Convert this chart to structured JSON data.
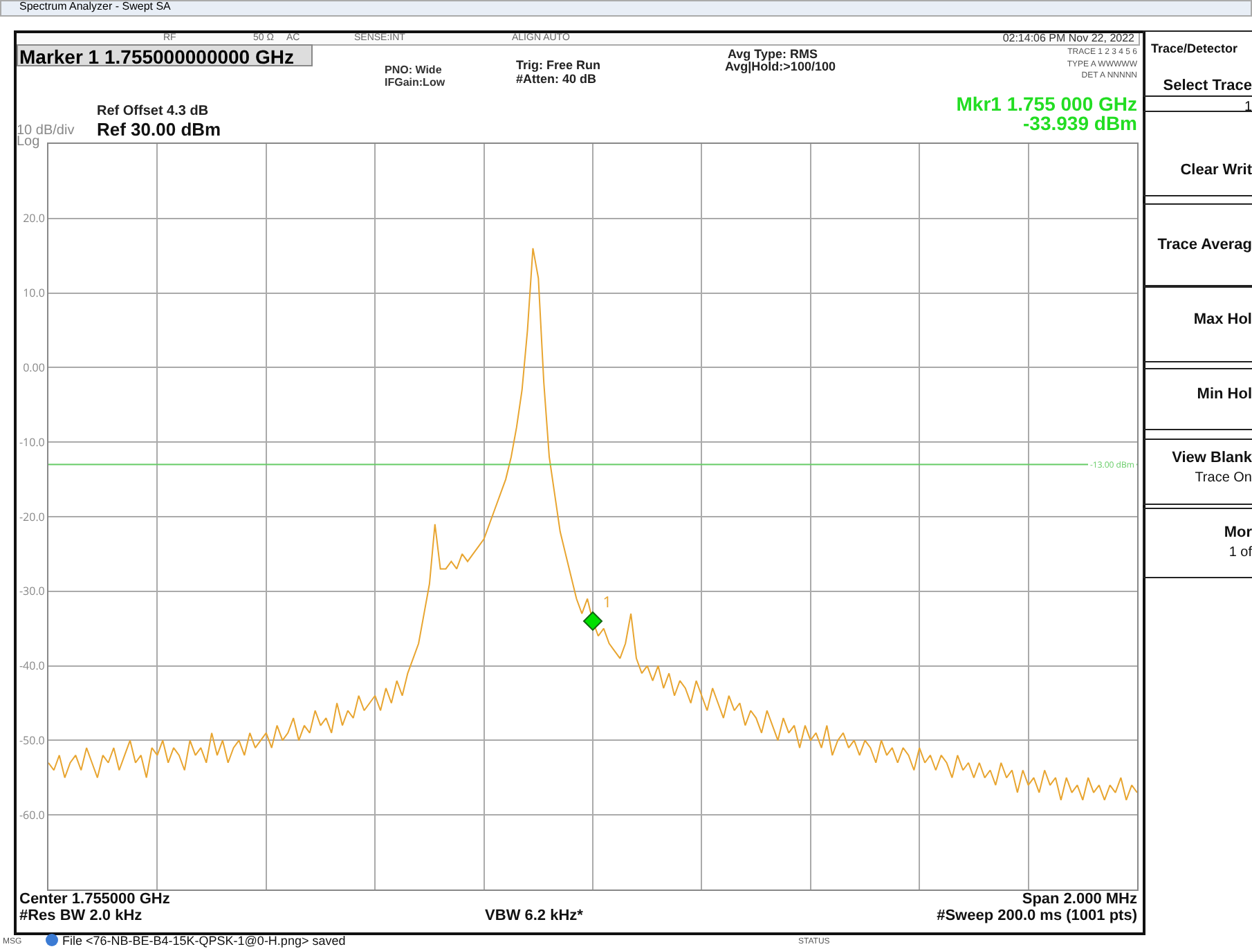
{
  "chart_data": {
    "type": "line",
    "title": "Spectrum Analyzer - Swept SA",
    "categories": [
      null,
      null,
      null,
      null,
      null,
      null,
      null,
      null,
      null,
      null,
      null,
      null,
      null,
      null,
      null,
      null,
      null,
      null,
      null,
      null,
      null,
      null,
      null,
      null,
      null,
      null,
      null,
      null,
      null,
      null,
      null,
      null,
      null,
      null,
      null,
      null,
      null,
      null,
      null,
      null,
      null,
      null,
      null,
      null,
      null,
      null,
      null,
      null,
      null,
      null,
      null,
      null,
      null,
      null,
      null,
      null,
      null,
      null,
      null,
      null,
      null,
      null,
      null,
      null,
      null,
      null,
      null,
      null,
      null,
      null,
      null,
      null,
      null,
      null,
      null,
      null,
      null,
      null,
      null,
      null,
      null,
      null,
      null,
      null,
      null,
      null,
      null,
      null,
      null,
      null,
      null,
      null,
      null,
      null,
      null,
      null,
      null,
      null,
      null,
      null,
      null,
      null,
      null,
      null,
      null,
      null,
      null,
      null,
      null,
      null,
      null,
      null,
      null,
      null,
      null,
      null,
      null,
      null,
      null,
      null,
      null,
      null,
      null,
      null,
      null,
      null,
      null,
      null,
      null,
      null,
      null,
      null,
      null,
      null,
      null,
      null,
      null,
      null,
      null,
      null,
      null,
      null,
      null,
      null,
      null,
      null,
      null,
      null,
      null,
      null,
      null,
      null,
      null,
      null,
      null,
      null,
      null,
      null,
      null,
      null,
      null,
      null,
      null,
      null,
      null,
      null,
      null,
      null,
      null,
      null,
      null,
      null,
      null,
      null,
      null,
      null,
      null,
      null,
      null,
      null,
      null,
      null,
      null,
      null,
      null,
      null,
      null,
      null,
      null,
      null,
      null,
      null,
      null,
      null,
      null,
      null,
      null,
      null,
      null,
      null,
      null
    ],
    "series": [
      {
        "type": "line",
        "color": "#e8a530",
        "values": [
          -53,
          -54,
          -52,
          -55,
          -53,
          -52,
          -54,
          -51,
          -53,
          -55,
          -52,
          -53,
          -51,
          -54,
          -52,
          -50,
          -53,
          -52,
          -55,
          -51,
          -52,
          -50,
          -53,
          -51,
          -52,
          -54,
          -50,
          -52,
          -51,
          -53,
          -49,
          -52,
          -50,
          -53,
          -51,
          -50,
          -52,
          -49,
          -51,
          -50,
          -49,
          -51,
          -48,
          -50,
          -49,
          -47,
          -50,
          -48,
          -49,
          -46,
          -48,
          -47,
          -49,
          -45,
          -48,
          -46,
          -47,
          -44,
          -46,
          -45,
          -44,
          -46,
          -43,
          -45,
          -42,
          -44,
          -41,
          -39,
          -37,
          -33,
          -29,
          -21,
          -27,
          -27,
          -26,
          -27,
          -25,
          -26,
          -25,
          -24,
          -23,
          -21,
          -19,
          -17,
          -15,
          -12,
          -8,
          -3,
          5,
          16,
          12,
          -2,
          -12,
          -17,
          -22,
          -25,
          -28,
          -31,
          -33,
          -31,
          -34,
          -36,
          -35,
          -37,
          -38,
          -39,
          -37,
          -33,
          -39,
          -41,
          -40,
          -42,
          -40,
          -43,
          -41,
          -44,
          -42,
          -43,
          -45,
          -42,
          -44,
          -46,
          -43,
          -45,
          -47,
          -44,
          -46,
          -45,
          -48,
          -46,
          -47,
          -49,
          -46,
          -48,
          -50,
          -47,
          -49,
          -48,
          -51,
          -48,
          -50,
          -49,
          -51,
          -48,
          -52,
          -50,
          -49,
          -51,
          -50,
          -52,
          -50,
          -51,
          -53,
          -50,
          -52,
          -51,
          -53,
          -51,
          -52,
          -54,
          -51,
          -53,
          -52,
          -54,
          -52,
          -53,
          -55,
          -52,
          -54,
          -53,
          -55,
          -53,
          -55,
          -54,
          -56,
          -53,
          -55,
          -54,
          -57,
          -54,
          -56,
          -55,
          -57,
          -54,
          -56,
          -55,
          -58,
          -55,
          -57,
          -56,
          -58,
          -55,
          -57,
          -56,
          -58,
          -56,
          -57,
          -55,
          -58,
          -56,
          -57
        ]
      },
      {
        "type": "scatter",
        "name": "1",
        "color": "#00e000",
        "marker": "diamond",
        "values": [
          null,
          null,
          null,
          null,
          null,
          null,
          null,
          null,
          null,
          null,
          null,
          null,
          null,
          null,
          null,
          null,
          null,
          null,
          null,
          null,
          null,
          null,
          null,
          null,
          null,
          null,
          null,
          null,
          null,
          null,
          null,
          null,
          null,
          null,
          null,
          null,
          null,
          null,
          null,
          null,
          null,
          null,
          null,
          null,
          null,
          null,
          null,
          null,
          null,
          null,
          null,
          null,
          null,
          null,
          null,
          null,
          null,
          null,
          null,
          null,
          null,
          null,
          null,
          null,
          null,
          null,
          null,
          null,
          null,
          null,
          null,
          null,
          null,
          null,
          null,
          null,
          null,
          null,
          null,
          null,
          null,
          null,
          null,
          null,
          null,
          null,
          null,
          null,
          null,
          null,
          null,
          null,
          null,
          null,
          null,
          null,
          null,
          null,
          null,
          null,
          -34,
          null,
          null,
          null,
          null,
          null,
          null,
          null,
          null,
          null,
          null,
          null,
          null,
          null,
          null,
          null,
          null,
          null,
          null,
          null,
          null,
          null,
          null,
          null,
          null,
          null,
          null,
          null,
          null,
          null,
          null,
          null,
          null,
          null,
          null,
          null,
          null,
          null,
          null,
          null,
          null,
          null,
          null,
          null,
          null,
          null,
          null,
          null,
          null,
          null,
          null,
          null,
          null,
          null,
          null,
          null,
          null,
          null,
          null,
          null,
          null,
          null,
          null,
          null,
          null,
          null,
          null,
          null,
          null,
          null,
          null,
          null,
          null,
          null,
          null,
          null,
          null,
          null,
          null,
          null,
          null,
          null,
          null,
          null,
          null,
          null,
          null,
          null,
          null,
          null,
          null,
          null,
          null,
          null,
          null,
          null,
          null,
          null,
          null,
          null,
          null
        ]
      }
    ],
    "ylim": [
      -70,
      30
    ],
    "yticks": [
      {
        "value": 20,
        "label": "20.0"
      },
      {
        "value": 10,
        "label": "10.0"
      },
      {
        "value": 0,
        "label": "0.00"
      },
      {
        "value": -10,
        "label": "-10.0"
      },
      {
        "value": -20,
        "label": "-20.0"
      },
      {
        "value": -30,
        "label": "-30.0"
      },
      {
        "value": -40,
        "label": "-40.0"
      },
      {
        "value": -50,
        "label": "-50.0"
      },
      {
        "value": -60,
        "label": "-60.0"
      }
    ],
    "grid": true,
    "tick_labels": "y",
    "legend": false,
    "line_style": "solid",
    "ref_lines": [
      {
        "axis": "y",
        "value": -13,
        "label": "-13.00 dBm",
        "color": "#66cc66"
      }
    ],
    "annotations": [
      "Marker 1 1.755000000000 GHz",
      "RF",
      "50 Ω",
      "AC",
      "SENSE:INT",
      "ALIGN AUTO",
      "02:14:06 PM Nov 22, 2022",
      "PNO: Wide",
      "IFGain:Low",
      "Trig: Free Run",
      "#Atten: 40 dB",
      "Avg Type: RMS",
      "Avg|Hold:>100/100",
      "TRACE 1 2 3 4 5 6",
      "TYPE A WWWWW",
      "DET A NNNNN",
      "Ref Offset 4.3 dB",
      "Ref 30.00 dBm",
      "10 dB/div",
      "Log",
      "Mkr1 1.755 000 GHz",
      "-33.939 dBm",
      "Center 1.755000 GHz",
      "#Res BW 2.0 kHz",
      "VBW 6.2 kHz*",
      "Span 2.000 MHz",
      "#Sweep 200.0 ms (1001 pts)",
      "MSG",
      "File <76-NB-BE-B4-15K-QPSK-1@0-H.png> saved",
      "STATUS",
      "Trace/Detector",
      "Select Trace",
      "1",
      "Clear Writ",
      "Trace Averag",
      "Max Hol",
      "Min Hol",
      "View Blank",
      "Trace On",
      "Mor",
      "1 of"
    ]
  }
}
